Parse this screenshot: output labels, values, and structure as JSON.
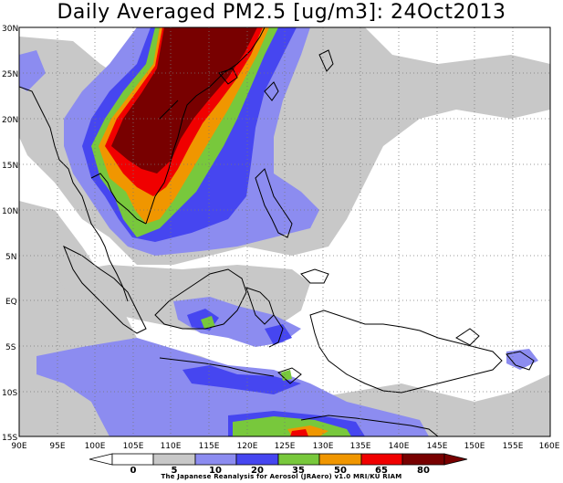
{
  "title": "Daily Averaged PM2.5 [ug/m3]: 24Oct2013",
  "lat_labels": [
    "30N",
    "25N",
    "20N",
    "15N",
    "10N",
    "5N",
    "EQ",
    "5S",
    "10S",
    "15S"
  ],
  "lon_labels": [
    "90E",
    "95E",
    "100E",
    "105E",
    "110E",
    "115E",
    "120E",
    "125E",
    "130E",
    "135E",
    "140E",
    "145E",
    "150E",
    "155E",
    "160E"
  ],
  "colorbar": {
    "levels": [
      "0",
      "5",
      "10",
      "20",
      "35",
      "50",
      "65",
      "80"
    ],
    "colors": [
      "#ffffff",
      "#ffffff",
      "#c8c8c8",
      "#8c8cf0",
      "#4646f0",
      "#78c83c",
      "#f09600",
      "#f00000",
      "#780000",
      "#780000"
    ]
  },
  "credit": "The Japanese Reanalysis for Aerosol (JRAero) v1.0 MRI/KU RIAM",
  "colors": {
    "light_gray": "#c8c8c8",
    "light_blue": "#8c8cf0",
    "blue": "#4646f0",
    "green": "#78c83c",
    "orange": "#f09600",
    "red": "#f00000",
    "dark_red": "#780000"
  }
}
